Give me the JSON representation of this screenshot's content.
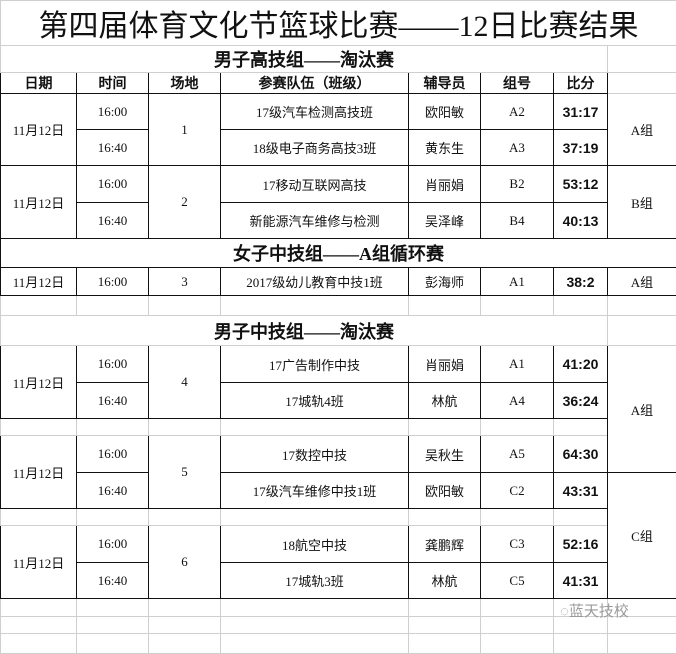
{
  "title": "第四届体育文化节篮球比赛——12日比赛结果",
  "headers": {
    "date": "日期",
    "time": "时间",
    "venue": "场地",
    "team": "参赛队伍（班级）",
    "coach": "辅导员",
    "group_no": "组号",
    "score": "比分"
  },
  "sections": [
    {
      "title": "男子高技组——淘汰赛",
      "matches": [
        {
          "date": "11月12日",
          "venue": "1",
          "group": "A组",
          "games": [
            {
              "time": "16:00",
              "team": "17级汽车检测高技班",
              "coach": "欧阳敏",
              "group_no": "A2",
              "score": "31:17"
            },
            {
              "time": "16:40",
              "team": "18级电子商务高技3班",
              "coach": "黄东生",
              "group_no": "A3",
              "score": "37:19"
            }
          ]
        },
        {
          "date": "11月12日",
          "venue": "2",
          "group": "B组",
          "games": [
            {
              "time": "16:00",
              "team": "17移动互联网高技",
              "coach": "肖丽娟",
              "group_no": "B2",
              "score": "53:12"
            },
            {
              "time": "16:40",
              "team": "新能源汽车维修与检测",
              "coach": "吴泽峰",
              "group_no": "B4",
              "score": "40:13"
            }
          ]
        }
      ]
    },
    {
      "title": "女子中技组——A组循环赛",
      "matches": [
        {
          "date": "11月12日",
          "venue": "3",
          "group": "A组",
          "games": [
            {
              "time": "16:00",
              "team": "2017级幼儿教育中技1班",
              "coach": "彭海师",
              "group_no": "A1",
              "score": "38:2"
            }
          ]
        }
      ]
    },
    {
      "title": "男子中技组——淘汰赛",
      "group_a": "A组",
      "group_c": "C组",
      "matches": [
        {
          "date": "11月12日",
          "venue": "4",
          "games": [
            {
              "time": "16:00",
              "team": "17广告制作中技",
              "coach": "肖丽娟",
              "group_no": "A1",
              "score": "41:20"
            },
            {
              "time": "16:40",
              "team": "17城轨4班",
              "coach": "林航",
              "group_no": "A4",
              "score": "36:24"
            }
          ]
        },
        {
          "date": "11月12日",
          "venue": "5",
          "games": [
            {
              "time": "16:00",
              "team": "17数控中技",
              "coach": "吴秋生",
              "group_no": "A5",
              "score": "64:30"
            },
            {
              "time": "16:40",
              "team": "17级汽车维修中技1班",
              "coach": "欧阳敏",
              "group_no": "C2",
              "score": "43:31"
            }
          ]
        },
        {
          "date": "11月12日",
          "venue": "6",
          "games": [
            {
              "time": "16:00",
              "team": "18航空中技",
              "coach": "龚鹏辉",
              "group_no": "C3",
              "score": "52:16"
            },
            {
              "time": "16:40",
              "team": "17城轨3班",
              "coach": "林航",
              "group_no": "C5",
              "score": "41:31"
            }
          ]
        }
      ]
    }
  ],
  "watermark": {
    "icon": "wechat-icon",
    "text": "蓝天技校"
  }
}
